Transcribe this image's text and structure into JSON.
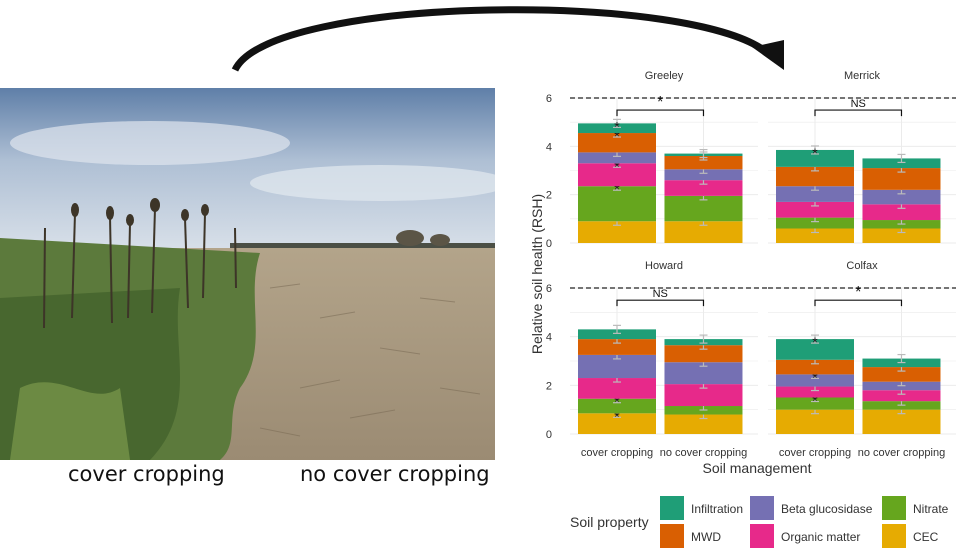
{
  "photo": {
    "left_caption": "cover cropping",
    "right_caption": "no cover cropping"
  },
  "chart_data": {
    "type": "bar",
    "stacked": true,
    "ylabel": "Relative soil health (RSH)",
    "xlabel": "Soil management",
    "ylim": [
      0,
      6
    ],
    "yticks": [
      0,
      2,
      4,
      6
    ],
    "reference_line": 6,
    "categories": [
      "cover cropping",
      "no cover cropping"
    ],
    "legend": {
      "title": "Soil property",
      "items": [
        "Infiltration",
        "Beta glucosidase",
        "Nitrate",
        "MWD",
        "Organic matter",
        "CEC"
      ],
      "position": "bottom"
    },
    "stack_order": [
      "CEC",
      "Nitrate",
      "Organic matter",
      "Beta glucosidase",
      "MWD",
      "Infiltration"
    ],
    "colors": {
      "Infiltration": "#1f9e77",
      "MWD": "#d95f02",
      "Beta glucosidase": "#7570b3",
      "Organic matter": "#e7298a",
      "Nitrate": "#66a61e",
      "CEC": "#e6ab02"
    },
    "panels": [
      {
        "site": "Greeley",
        "significance": "*",
        "bars": [
          {
            "CEC": 0.9,
            "Nitrate": 1.45,
            "Organic matter": 0.95,
            "Beta glucosidase": 0.45,
            "MWD": 0.8,
            "Infiltration": 0.4
          },
          {
            "CEC": 0.9,
            "Nitrate": 1.05,
            "Organic matter": 0.65,
            "Beta glucosidase": 0.45,
            "MWD": 0.55,
            "Infiltration": 0.1
          }
        ],
        "stars": [
          [
            "Nitrate",
            "Organic matter",
            "MWD",
            "Infiltration"
          ],
          []
        ]
      },
      {
        "site": "Merrick",
        "significance": "NS",
        "bars": [
          {
            "CEC": 0.6,
            "Nitrate": 0.45,
            "Organic matter": 0.65,
            "Beta glucosidase": 0.65,
            "MWD": 0.8,
            "Infiltration": 0.7
          },
          {
            "CEC": 0.6,
            "Nitrate": 0.35,
            "Organic matter": 0.65,
            "Beta glucosidase": 0.6,
            "MWD": 0.9,
            "Infiltration": 0.4
          }
        ],
        "stars": [
          [
            "Infiltration"
          ],
          []
        ]
      },
      {
        "site": "Howard",
        "significance": "NS",
        "bars": [
          {
            "CEC": 0.85,
            "Nitrate": 0.6,
            "Organic matter": 0.85,
            "Beta glucosidase": 0.95,
            "MWD": 0.65,
            "Infiltration": 0.4
          },
          {
            "CEC": 0.8,
            "Nitrate": 0.35,
            "Organic matter": 0.9,
            "Beta glucosidase": 0.9,
            "MWD": 0.7,
            "Infiltration": 0.25
          }
        ],
        "stars": [
          [
            "CEC",
            "Nitrate"
          ],
          []
        ]
      },
      {
        "site": "Colfax",
        "significance": "*",
        "bars": [
          {
            "CEC": 1.0,
            "Nitrate": 0.5,
            "Organic matter": 0.45,
            "Beta glucosidase": 0.5,
            "MWD": 0.6,
            "Infiltration": 0.85
          },
          {
            "CEC": 1.0,
            "Nitrate": 0.35,
            "Organic matter": 0.45,
            "Beta glucosidase": 0.35,
            "MWD": 0.6,
            "Infiltration": 0.35
          }
        ],
        "stars": [
          [
            "Nitrate",
            "Beta glucosidase",
            "Infiltration"
          ],
          []
        ]
      }
    ]
  }
}
